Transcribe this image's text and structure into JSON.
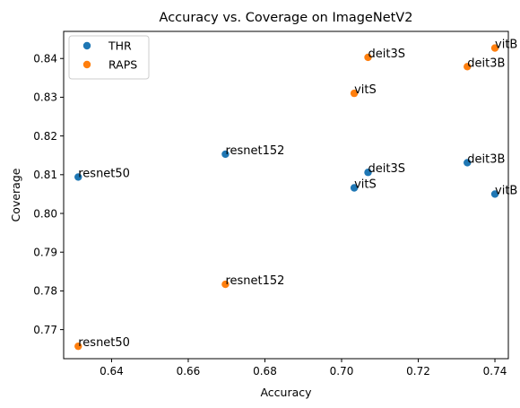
{
  "chart_data": {
    "type": "scatter",
    "title": "Accuracy vs. Coverage on ImageNetV2",
    "xlabel": "Accuracy",
    "ylabel": "Coverage",
    "xlim": [
      0.6275,
      0.7435
    ],
    "ylim": [
      0.7625,
      0.847
    ],
    "xticks": [
      "0.64",
      "0.66",
      "0.68",
      "0.70",
      "0.72",
      "0.74"
    ],
    "yticks": [
      "0.77",
      "0.78",
      "0.79",
      "0.80",
      "0.81",
      "0.82",
      "0.83",
      "0.84"
    ],
    "grid": false,
    "legend_position": "top-left",
    "series": [
      {
        "name": "THR",
        "color": "#1f77b4",
        "points": [
          {
            "label": "resnet50",
            "x": 0.6313,
            "y": 0.8094
          },
          {
            "label": "resnet152",
            "x": 0.6697,
            "y": 0.8153
          },
          {
            "label": "vitS",
            "x": 0.7033,
            "y": 0.8066
          },
          {
            "label": "deit3S",
            "x": 0.7069,
            "y": 0.8106
          },
          {
            "label": "deit3B",
            "x": 0.7328,
            "y": 0.8131
          },
          {
            "label": "vitB",
            "x": 0.74,
            "y": 0.805
          }
        ]
      },
      {
        "name": "RAPS",
        "color": "#ff7f0e",
        "points": [
          {
            "label": "resnet50",
            "x": 0.6313,
            "y": 0.7657
          },
          {
            "label": "resnet152",
            "x": 0.6697,
            "y": 0.7817
          },
          {
            "label": "vitS",
            "x": 0.7033,
            "y": 0.831
          },
          {
            "label": "deit3S",
            "x": 0.7069,
            "y": 0.8403
          },
          {
            "label": "deit3B",
            "x": 0.7328,
            "y": 0.8379
          },
          {
            "label": "vitB",
            "x": 0.74,
            "y": 0.8427
          }
        ]
      }
    ]
  }
}
